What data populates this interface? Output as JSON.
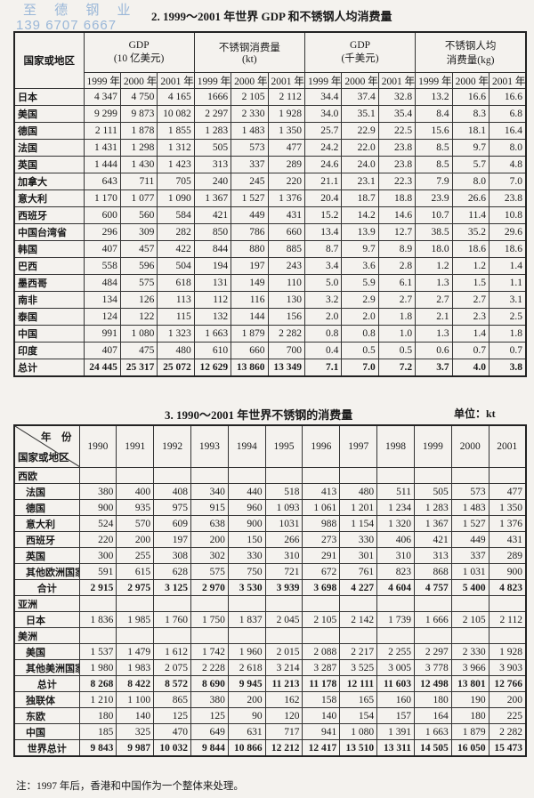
{
  "watermark": {
    "line1": "至 德 钢 业",
    "line2": "139 6707 6667",
    "color": "#9ab7d8"
  },
  "table1": {
    "title": "2. 1999～2001 年世界 GDP 和不锈钢人均消费量",
    "region_header": "国家或地区",
    "groups": [
      {
        "line1": "GDP",
        "line2": "(10 亿美元)"
      },
      {
        "line1": "不锈钢消费量",
        "line2": "(kt)"
      },
      {
        "line1": "GDP",
        "line2": "(千美元)"
      },
      {
        "line1": "不锈钢人均",
        "line2": "消费量(kg)"
      }
    ],
    "years": [
      "1999 年",
      "2000 年",
      "2001 年"
    ],
    "rows": [
      {
        "name": "日本",
        "values": [
          "4 347",
          "4 750",
          "4 165",
          "1666",
          "2 105",
          "2 112",
          "34.4",
          "37.4",
          "32.8",
          "13.2",
          "16.6",
          "16.6"
        ]
      },
      {
        "name": "美国",
        "values": [
          "9 299",
          "9 873",
          "10 082",
          "2 297",
          "2 330",
          "1 928",
          "34.0",
          "35.1",
          "35.4",
          "8.4",
          "8.3",
          "6.8"
        ]
      },
      {
        "name": "德国",
        "values": [
          "2 111",
          "1 878",
          "1 855",
          "1 283",
          "1 483",
          "1 350",
          "25.7",
          "22.9",
          "22.5",
          "15.6",
          "18.1",
          "16.4"
        ]
      },
      {
        "name": "法国",
        "values": [
          "1 431",
          "1 298",
          "1 312",
          "505",
          "573",
          "477",
          "24.2",
          "22.0",
          "23.8",
          "8.5",
          "9.7",
          "8.0"
        ]
      },
      {
        "name": "英国",
        "values": [
          "1 444",
          "1 430",
          "1 423",
          "313",
          "337",
          "289",
          "24.6",
          "24.0",
          "23.8",
          "8.5",
          "5.7",
          "4.8"
        ]
      },
      {
        "name": "加拿大",
        "values": [
          "643",
          "711",
          "705",
          "240",
          "245",
          "220",
          "21.1",
          "23.1",
          "22.3",
          "7.9",
          "8.0",
          "7.0"
        ]
      },
      {
        "name": "意大利",
        "values": [
          "1 170",
          "1 077",
          "1 090",
          "1 367",
          "1 527",
          "1 376",
          "20.4",
          "18.7",
          "18.8",
          "23.9",
          "26.6",
          "23.8"
        ]
      },
      {
        "name": "西班牙",
        "values": [
          "600",
          "560",
          "584",
          "421",
          "449",
          "431",
          "15.2",
          "14.2",
          "14.6",
          "10.7",
          "11.4",
          "10.8"
        ]
      },
      {
        "name": "中国台湾省",
        "values": [
          "296",
          "309",
          "282",
          "850",
          "786",
          "660",
          "13.4",
          "13.9",
          "12.7",
          "38.5",
          "35.2",
          "29.6"
        ]
      },
      {
        "name": "韩国",
        "values": [
          "407",
          "457",
          "422",
          "844",
          "880",
          "885",
          "8.7",
          "9.7",
          "8.9",
          "18.0",
          "18.6",
          "18.6"
        ]
      },
      {
        "name": "巴西",
        "values": [
          "558",
          "596",
          "504",
          "194",
          "197",
          "243",
          "3.4",
          "3.6",
          "2.8",
          "1.2",
          "1.2",
          "1.4"
        ]
      },
      {
        "name": "墨西哥",
        "values": [
          "484",
          "575",
          "618",
          "131",
          "149",
          "110",
          "5.0",
          "5.9",
          "6.1",
          "1.3",
          "1.5",
          "1.1"
        ]
      },
      {
        "name": "南非",
        "values": [
          "134",
          "126",
          "113",
          "112",
          "116",
          "130",
          "3.2",
          "2.9",
          "2.7",
          "2.7",
          "2.7",
          "3.1"
        ]
      },
      {
        "name": "泰国",
        "values": [
          "124",
          "122",
          "115",
          "132",
          "144",
          "156",
          "2.0",
          "2.0",
          "1.8",
          "2.1",
          "2.3",
          "2.5"
        ]
      },
      {
        "name": "中国",
        "values": [
          "991",
          "1 080",
          "1 323",
          "1 663",
          "1 879",
          "2 282",
          "0.8",
          "0.8",
          "1.0",
          "1.3",
          "1.4",
          "1.8"
        ]
      },
      {
        "name": "印度",
        "values": [
          "407",
          "475",
          "480",
          "610",
          "660",
          "700",
          "0.4",
          "0.5",
          "0.5",
          "0.6",
          "0.7",
          "0.7"
        ]
      },
      {
        "name": "总计",
        "bold": true,
        "values": [
          "24 445",
          "25 317",
          "25 072",
          "12 629",
          "13 860",
          "13 349",
          "7.1",
          "7.0",
          "7.2",
          "3.7",
          "4.0",
          "3.8"
        ]
      }
    ]
  },
  "table2": {
    "title": "3. 1990～2001 年世界不锈钢的消费量",
    "unit": "单位：kt",
    "year_header": "年　份",
    "region_header": "国家或地区",
    "years": [
      "1990",
      "1991",
      "1992",
      "1993",
      "1994",
      "1995",
      "1996",
      "1997",
      "1998",
      "1999",
      "2000",
      "2001"
    ],
    "rows": [
      {
        "name": "西欧",
        "group": true
      },
      {
        "name": "法国",
        "indent": true,
        "values": [
          "380",
          "400",
          "408",
          "340",
          "440",
          "518",
          "413",
          "480",
          "511",
          "505",
          "573",
          "477"
        ]
      },
      {
        "name": "德国",
        "indent": true,
        "values": [
          "900",
          "935",
          "975",
          "915",
          "960",
          "1 093",
          "1 061",
          "1 201",
          "1 234",
          "1 283",
          "1 483",
          "1 350"
        ]
      },
      {
        "name": "意大利",
        "indent": true,
        "values": [
          "524",
          "570",
          "609",
          "638",
          "900",
          "1031",
          "988",
          "1 154",
          "1 320",
          "1 367",
          "1 527",
          "1 376"
        ]
      },
      {
        "name": "西班牙",
        "indent": true,
        "values": [
          "220",
          "200",
          "197",
          "200",
          "150",
          "266",
          "273",
          "330",
          "406",
          "421",
          "449",
          "431"
        ]
      },
      {
        "name": "英国",
        "indent": true,
        "values": [
          "300",
          "255",
          "308",
          "302",
          "330",
          "310",
          "291",
          "301",
          "310",
          "313",
          "337",
          "289"
        ]
      },
      {
        "name": "其他欧洲国家",
        "indent": true,
        "values": [
          "591",
          "615",
          "628",
          "575",
          "750",
          "721",
          "672",
          "761",
          "823",
          "868",
          "1 031",
          "900"
        ]
      },
      {
        "name": "合计",
        "center": true,
        "bold": true,
        "values": [
          "2 915",
          "2 975",
          "3 125",
          "2 970",
          "3 530",
          "3 939",
          "3 698",
          "4 227",
          "4 604",
          "4 757",
          "5 400",
          "4 823"
        ]
      },
      {
        "name": "亚洲",
        "group": true
      },
      {
        "name": "日本",
        "indent": true,
        "values": [
          "1 836",
          "1 985",
          "1 760",
          "1 750",
          "1 837",
          "2 045",
          "2 105",
          "2 142",
          "1 739",
          "1 666",
          "2 105",
          "2 112"
        ]
      },
      {
        "name": "美洲",
        "group": true
      },
      {
        "name": "美国",
        "indent": true,
        "values": [
          "1 537",
          "1 479",
          "1 612",
          "1 742",
          "1 960",
          "2 015",
          "2 088",
          "2 217",
          "2 255",
          "2 297",
          "2 330",
          "1 928"
        ]
      },
      {
        "name": "其他美洲国家",
        "indent": true,
        "values": [
          "1 980",
          "1 983",
          "2 075",
          "2 228",
          "2 618",
          "3 214",
          "3 287",
          "3 525",
          "3 005",
          "3 778",
          "3 966",
          "3 903"
        ]
      },
      {
        "name": "总计",
        "center": true,
        "bold": true,
        "values": [
          "8 268",
          "8 422",
          "8 572",
          "8 690",
          "9 945",
          "11 213",
          "11 178",
          "12 111",
          "11 603",
          "12 498",
          "13 801",
          "12 766"
        ]
      },
      {
        "name": "独联体",
        "indent": true,
        "values": [
          "1 210",
          "1 100",
          "865",
          "380",
          "200",
          "162",
          "158",
          "165",
          "160",
          "180",
          "190",
          "200"
        ]
      },
      {
        "name": "东欧",
        "indent": true,
        "values": [
          "180",
          "140",
          "125",
          "125",
          "90",
          "120",
          "140",
          "154",
          "157",
          "164",
          "180",
          "225"
        ]
      },
      {
        "name": "中国",
        "indent": true,
        "values": [
          "185",
          "325",
          "470",
          "649",
          "631",
          "717",
          "941",
          "1 080",
          "1 391",
          "1 663",
          "1 879",
          "2 282"
        ]
      },
      {
        "name": "世界总计",
        "center": true,
        "bold": true,
        "values": [
          "9 843",
          "9 987",
          "10 032",
          "9 844",
          "10 866",
          "12 212",
          "12 417",
          "13 510",
          "13 311",
          "14 505",
          "16 050",
          "15 473"
        ]
      }
    ],
    "note": "注：1997 年后，香港和中国作为一个整体来处理。"
  }
}
